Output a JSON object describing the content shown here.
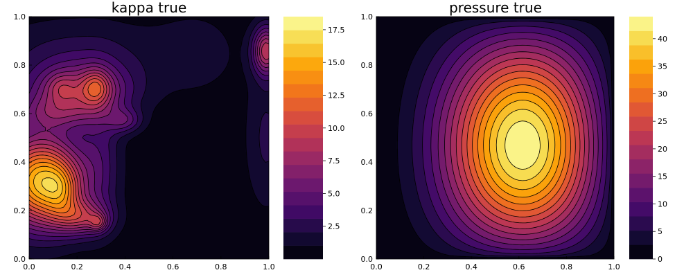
{
  "chart_data": [
    {
      "type": "heatmap",
      "subtype": "filled-contour",
      "title": "kappa true",
      "xlabel": "",
      "ylabel": "",
      "xlim": [
        0.0,
        1.0
      ],
      "ylim": [
        0.0,
        1.0
      ],
      "x_ticks": [
        "0.0",
        "0.2",
        "0.4",
        "0.6",
        "0.8",
        "1.0"
      ],
      "y_ticks": [
        "0.0",
        "0.2",
        "0.4",
        "0.6",
        "0.8",
        "1.0"
      ],
      "colorbar": {
        "range": [
          0.0,
          18.5
        ],
        "levels": 18,
        "tick_values": [
          2.5,
          5.0,
          7.5,
          10.0,
          12.5,
          15.0,
          17.5
        ],
        "tick_labels": [
          "2.5",
          "5.0",
          "7.5",
          "10.0",
          "12.5",
          "15.0",
          "17.5"
        ],
        "colormap": "inferno"
      },
      "features": [
        {
          "x": 0.0,
          "y": 0.3,
          "peak": 17.5,
          "description": "high-value region lower-left"
        },
        {
          "x": 0.14,
          "y": 0.28,
          "peak": 18.0
        },
        {
          "x": 0.28,
          "y": 0.15,
          "peak": 15.0
        },
        {
          "x": 0.28,
          "y": 0.71,
          "peak": 10.5
        },
        {
          "x": 0.14,
          "y": 0.71,
          "peak": 9.0
        },
        {
          "x": 0.42,
          "y": 0.57,
          "peak": 8.5
        },
        {
          "x": 1.0,
          "y": 0.86,
          "peak": 9.0
        }
      ],
      "grid": false
    },
    {
      "type": "heatmap",
      "subtype": "filled-contour",
      "title": "pressure true",
      "xlabel": "",
      "ylabel": "",
      "xlim": [
        0.0,
        1.0
      ],
      "ylim": [
        0.0,
        1.0
      ],
      "x_ticks": [
        "0.0",
        "0.2",
        "0.4",
        "0.6",
        "0.8",
        "1.0"
      ],
      "y_ticks": [
        "0.0",
        "0.2",
        "0.4",
        "0.6",
        "0.8",
        "1.0"
      ],
      "colorbar": {
        "range": [
          0.0,
          44.0
        ],
        "levels": 17,
        "tick_values": [
          0,
          5,
          10,
          15,
          20,
          25,
          30,
          35,
          40
        ],
        "tick_labels": [
          "0",
          "5",
          "10",
          "15",
          "20",
          "25",
          "30",
          "35",
          "40"
        ],
        "colormap": "inferno"
      },
      "features": [
        {
          "x": 0.65,
          "y": 0.43,
          "peak": 43.5,
          "description": "maximum pressure"
        }
      ],
      "grid": false
    }
  ]
}
